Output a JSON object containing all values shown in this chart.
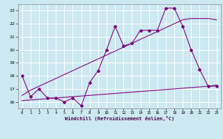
{
  "x": [
    0,
    1,
    2,
    3,
    4,
    5,
    6,
    7,
    8,
    9,
    10,
    11,
    12,
    13,
    14,
    15,
    16,
    17,
    18,
    19,
    20,
    21,
    22,
    23
  ],
  "line_data": [
    18.0,
    16.4,
    17.0,
    16.3,
    16.3,
    16.0,
    16.3,
    15.7,
    17.5,
    18.4,
    20.0,
    21.8,
    20.3,
    20.5,
    21.5,
    21.5,
    21.5,
    23.2,
    23.2,
    21.8,
    20.0,
    18.5,
    17.2,
    17.2
  ],
  "line_upper": [
    16.5,
    16.9,
    17.2,
    17.5,
    17.8,
    18.1,
    18.4,
    18.7,
    19.0,
    19.3,
    19.6,
    19.9,
    20.2,
    20.5,
    20.8,
    21.1,
    21.4,
    21.7,
    22.0,
    22.3,
    22.4,
    22.4,
    22.4,
    22.3
  ],
  "line_lower": [
    16.1,
    16.15,
    16.2,
    16.25,
    16.3,
    16.35,
    16.4,
    16.45,
    16.5,
    16.55,
    16.6,
    16.65,
    16.7,
    16.75,
    16.8,
    16.85,
    16.9,
    16.95,
    17.0,
    17.05,
    17.1,
    17.15,
    17.2,
    17.3
  ],
  "color_main": "#800080",
  "bg_color": "#cce8f0",
  "grid_color": "#ffffff",
  "xlabel": "Windchill (Refroidissement éolien,°C)",
  "ylim": [
    15.5,
    23.5
  ],
  "xlim": [
    -0.5,
    23.5
  ],
  "yticks": [
    16,
    17,
    18,
    19,
    20,
    21,
    22,
    23
  ],
  "xticks": [
    0,
    1,
    2,
    3,
    4,
    5,
    6,
    7,
    8,
    9,
    10,
    11,
    12,
    13,
    14,
    15,
    16,
    17,
    18,
    19,
    20,
    21,
    22,
    23
  ]
}
